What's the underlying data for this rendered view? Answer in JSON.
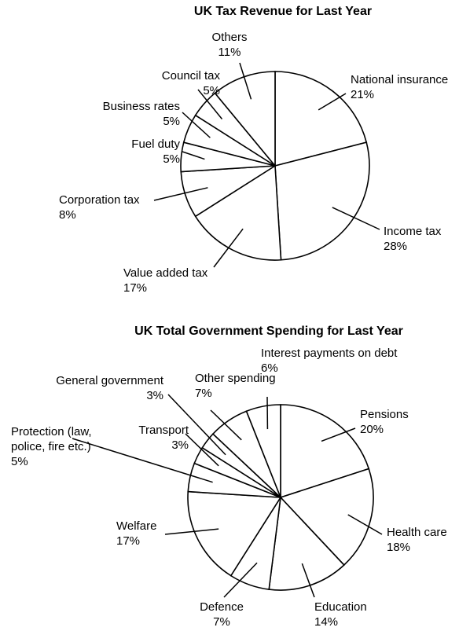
{
  "chart_data": [
    {
      "type": "pie",
      "title": "UK Tax Revenue for Last Year",
      "categories": [
        "National insurance",
        "Income tax",
        "Value added tax",
        "Corporation tax",
        "Fuel duty",
        "Business rates",
        "Council tax",
        "Others"
      ],
      "values": [
        21,
        28,
        17,
        8,
        5,
        5,
        5,
        11
      ],
      "value_labels": [
        "21%",
        "28%",
        "17%",
        "8%",
        "5%",
        "5%",
        "5%",
        "11%"
      ],
      "color": "#ffffff"
    },
    {
      "type": "pie",
      "title": "UK Total Government Spending for Last Year",
      "categories": [
        "Pensions",
        "Health care",
        "Education",
        "Defence",
        "Welfare",
        "Protection (law, police, fire etc.)",
        "Transport",
        "General government",
        "Other spending",
        "Interest payments on debt"
      ],
      "values": [
        20,
        18,
        14,
        7,
        17,
        5,
        3,
        3,
        7,
        6
      ],
      "value_labels": [
        "20%",
        "18%",
        "14%",
        "7%",
        "17%",
        "5%",
        "3%",
        "3%",
        "7%",
        "6%"
      ],
      "color": "#ffffff"
    }
  ]
}
